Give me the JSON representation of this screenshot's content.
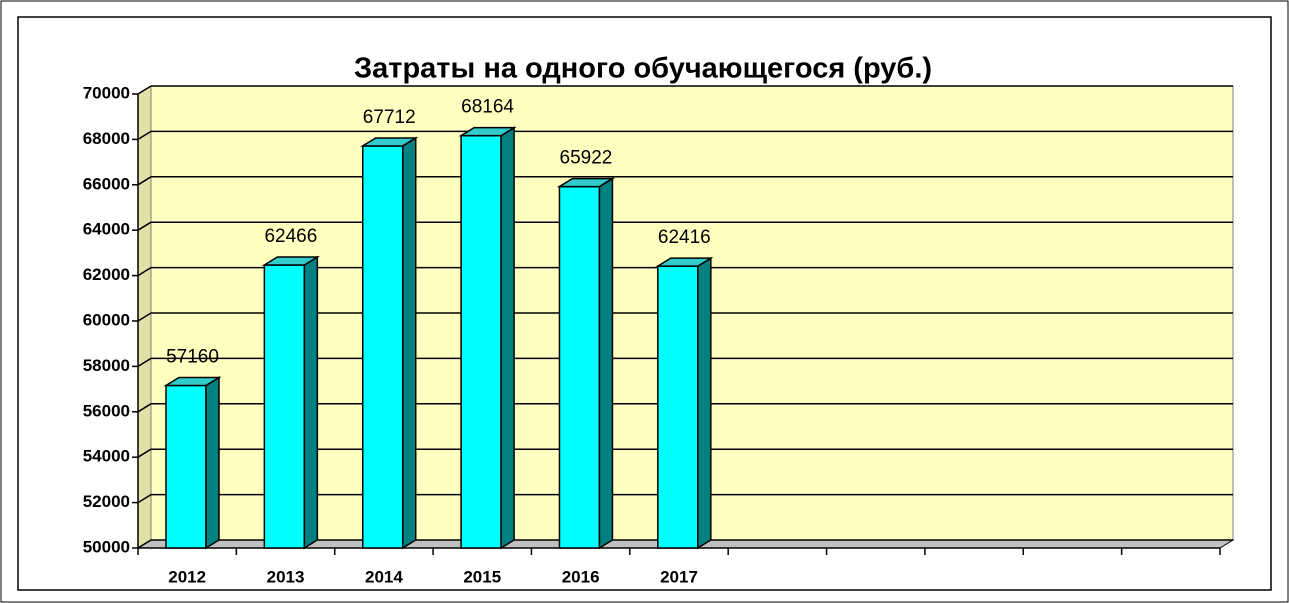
{
  "chart_data": {
    "type": "bar",
    "title": "Затраты на одного обучающегося (руб.)",
    "categories": [
      "2012",
      "2013",
      "2014",
      "2015",
      "2016",
      "2017",
      null,
      null,
      null,
      null,
      null
    ],
    "values": [
      57160,
      62466,
      67712,
      68164,
      65922,
      62416,
      null,
      null,
      null,
      null,
      null
    ],
    "color": "#00ffff",
    "ylim": [
      50000,
      70000
    ],
    "yticks": [
      50000,
      52000,
      54000,
      56000,
      58000,
      60000,
      62000,
      64000,
      66000,
      68000,
      70000
    ],
    "grid": true
  }
}
